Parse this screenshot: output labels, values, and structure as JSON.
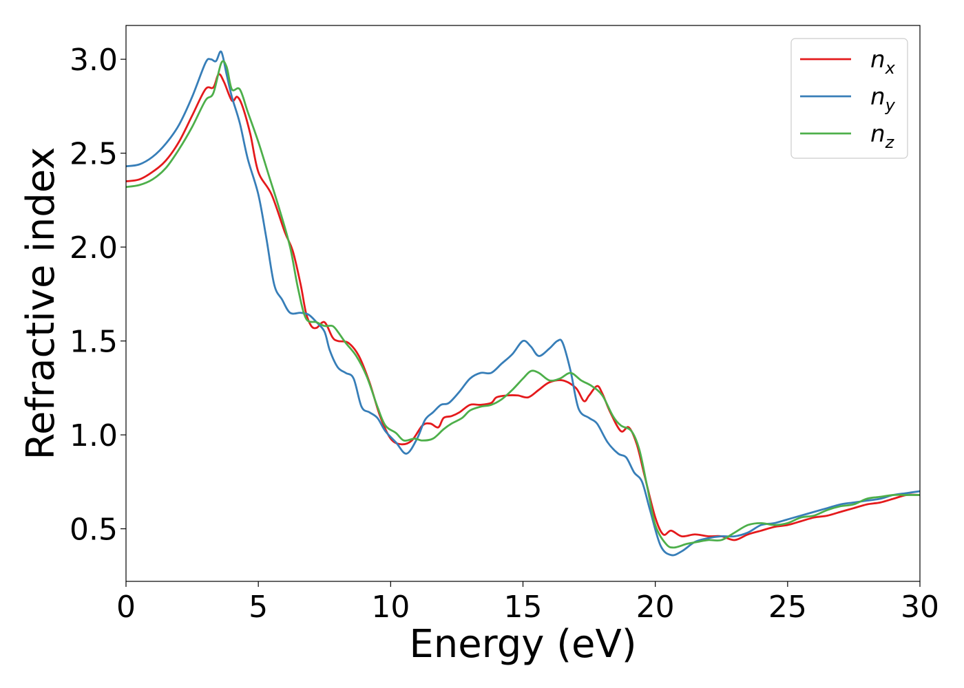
{
  "chart_data": {
    "type": "line",
    "title": "",
    "xlabel": "Energy (eV)",
    "ylabel": "Refractive index",
    "xlim": [
      0,
      30
    ],
    "ylim": [
      0.22,
      3.18
    ],
    "xticks": [
      0,
      5,
      10,
      15,
      20,
      25,
      30
    ],
    "xtick_labels": [
      "0",
      "5",
      "10",
      "15",
      "20",
      "25",
      "30"
    ],
    "yticks": [
      0.5,
      1.0,
      1.5,
      2.0,
      2.5,
      3.0
    ],
    "ytick_labels": [
      "0.5",
      "1.0",
      "1.5",
      "2.0",
      "2.5",
      "3.0"
    ],
    "grid": false,
    "legend_position": "top-right",
    "series": [
      {
        "name": "n_x",
        "label_base": "n",
        "label_sub": "x",
        "color": "#e41a1c",
        "points": [
          [
            0,
            2.35
          ],
          [
            0.5,
            2.36
          ],
          [
            1,
            2.4
          ],
          [
            1.5,
            2.46
          ],
          [
            2,
            2.56
          ],
          [
            2.5,
            2.7
          ],
          [
            3,
            2.84
          ],
          [
            3.3,
            2.85
          ],
          [
            3.5,
            2.92
          ],
          [
            3.7,
            2.88
          ],
          [
            4,
            2.78
          ],
          [
            4.2,
            2.8
          ],
          [
            4.4,
            2.75
          ],
          [
            4.7,
            2.6
          ],
          [
            5,
            2.4
          ],
          [
            5.5,
            2.28
          ],
          [
            6,
            2.08
          ],
          [
            6.3,
            1.98
          ],
          [
            6.6,
            1.8
          ],
          [
            6.8,
            1.65
          ],
          [
            7,
            1.58
          ],
          [
            7.2,
            1.57
          ],
          [
            7.5,
            1.6
          ],
          [
            7.8,
            1.52
          ],
          [
            8,
            1.5
          ],
          [
            8.4,
            1.49
          ],
          [
            8.8,
            1.42
          ],
          [
            9.2,
            1.28
          ],
          [
            9.6,
            1.1
          ],
          [
            10,
            0.98
          ],
          [
            10.4,
            0.95
          ],
          [
            10.8,
            0.97
          ],
          [
            11.2,
            1.05
          ],
          [
            11.5,
            1.06
          ],
          [
            11.8,
            1.04
          ],
          [
            12,
            1.09
          ],
          [
            12.3,
            1.1
          ],
          [
            12.6,
            1.12
          ],
          [
            13,
            1.16
          ],
          [
            13.4,
            1.16
          ],
          [
            13.8,
            1.17
          ],
          [
            14,
            1.2
          ],
          [
            14.4,
            1.21
          ],
          [
            14.8,
            1.21
          ],
          [
            15.2,
            1.2
          ],
          [
            15.6,
            1.24
          ],
          [
            16,
            1.28
          ],
          [
            16.5,
            1.29
          ],
          [
            17,
            1.25
          ],
          [
            17.3,
            1.18
          ],
          [
            17.5,
            1.21
          ],
          [
            17.8,
            1.26
          ],
          [
            18,
            1.22
          ],
          [
            18.3,
            1.12
          ],
          [
            18.7,
            1.02
          ],
          [
            19,
            1.04
          ],
          [
            19.3,
            0.95
          ],
          [
            19.6,
            0.78
          ],
          [
            20,
            0.56
          ],
          [
            20.3,
            0.47
          ],
          [
            20.6,
            0.49
          ],
          [
            21,
            0.46
          ],
          [
            21.5,
            0.47
          ],
          [
            22,
            0.46
          ],
          [
            22.5,
            0.46
          ],
          [
            23,
            0.44
          ],
          [
            23.5,
            0.47
          ],
          [
            24,
            0.49
          ],
          [
            24.5,
            0.51
          ],
          [
            25,
            0.52
          ],
          [
            25.5,
            0.54
          ],
          [
            26,
            0.56
          ],
          [
            26.5,
            0.57
          ],
          [
            27,
            0.59
          ],
          [
            27.5,
            0.61
          ],
          [
            28,
            0.63
          ],
          [
            28.5,
            0.64
          ],
          [
            29,
            0.66
          ],
          [
            29.5,
            0.68
          ],
          [
            30,
            0.68
          ]
        ]
      },
      {
        "name": "n_y",
        "label_base": "n",
        "label_sub": "y",
        "color": "#377eb8",
        "points": [
          [
            0,
            2.43
          ],
          [
            0.5,
            2.44
          ],
          [
            1,
            2.48
          ],
          [
            1.5,
            2.55
          ],
          [
            2,
            2.65
          ],
          [
            2.5,
            2.8
          ],
          [
            3,
            2.98
          ],
          [
            3.2,
            3.0
          ],
          [
            3.4,
            2.99
          ],
          [
            3.6,
            3.04
          ],
          [
            3.8,
            2.92
          ],
          [
            4,
            2.8
          ],
          [
            4.3,
            2.66
          ],
          [
            4.6,
            2.47
          ],
          [
            5,
            2.28
          ],
          [
            5.3,
            2.05
          ],
          [
            5.6,
            1.8
          ],
          [
            5.9,
            1.72
          ],
          [
            6.2,
            1.65
          ],
          [
            6.6,
            1.65
          ],
          [
            6.9,
            1.64
          ],
          [
            7.2,
            1.6
          ],
          [
            7.5,
            1.55
          ],
          [
            7.7,
            1.45
          ],
          [
            8,
            1.36
          ],
          [
            8.3,
            1.33
          ],
          [
            8.6,
            1.3
          ],
          [
            8.9,
            1.15
          ],
          [
            9.2,
            1.12
          ],
          [
            9.5,
            1.09
          ],
          [
            9.8,
            1.02
          ],
          [
            10.2,
            0.96
          ],
          [
            10.6,
            0.9
          ],
          [
            11,
            0.98
          ],
          [
            11.3,
            1.08
          ],
          [
            11.6,
            1.12
          ],
          [
            11.9,
            1.16
          ],
          [
            12.2,
            1.17
          ],
          [
            12.6,
            1.23
          ],
          [
            13,
            1.3
          ],
          [
            13.4,
            1.33
          ],
          [
            13.8,
            1.33
          ],
          [
            14.2,
            1.38
          ],
          [
            14.6,
            1.43
          ],
          [
            15,
            1.5
          ],
          [
            15.3,
            1.47
          ],
          [
            15.6,
            1.42
          ],
          [
            16,
            1.46
          ],
          [
            16.3,
            1.5
          ],
          [
            16.5,
            1.49
          ],
          [
            16.8,
            1.34
          ],
          [
            17.1,
            1.14
          ],
          [
            17.5,
            1.09
          ],
          [
            17.8,
            1.06
          ],
          [
            18.2,
            0.96
          ],
          [
            18.6,
            0.9
          ],
          [
            18.9,
            0.88
          ],
          [
            19.2,
            0.8
          ],
          [
            19.5,
            0.75
          ],
          [
            19.8,
            0.6
          ],
          [
            20.2,
            0.41
          ],
          [
            20.6,
            0.36
          ],
          [
            21,
            0.38
          ],
          [
            21.5,
            0.43
          ],
          [
            22,
            0.45
          ],
          [
            22.5,
            0.46
          ],
          [
            23,
            0.46
          ],
          [
            23.5,
            0.48
          ],
          [
            24,
            0.52
          ],
          [
            24.5,
            0.53
          ],
          [
            25,
            0.55
          ],
          [
            25.5,
            0.57
          ],
          [
            26,
            0.59
          ],
          [
            26.5,
            0.61
          ],
          [
            27,
            0.63
          ],
          [
            27.5,
            0.64
          ],
          [
            28,
            0.65
          ],
          [
            28.5,
            0.66
          ],
          [
            29,
            0.68
          ],
          [
            29.5,
            0.69
          ],
          [
            30,
            0.7
          ]
        ]
      },
      {
        "name": "n_z",
        "label_base": "n",
        "label_sub": "z",
        "color": "#4daf4a",
        "points": [
          [
            0,
            2.32
          ],
          [
            0.5,
            2.33
          ],
          [
            1,
            2.36
          ],
          [
            1.5,
            2.42
          ],
          [
            2,
            2.52
          ],
          [
            2.5,
            2.64
          ],
          [
            3,
            2.78
          ],
          [
            3.3,
            2.82
          ],
          [
            3.6,
            2.98
          ],
          [
            3.8,
            2.96
          ],
          [
            4,
            2.84
          ],
          [
            4.3,
            2.84
          ],
          [
            4.6,
            2.72
          ],
          [
            5,
            2.56
          ],
          [
            5.4,
            2.38
          ],
          [
            5.8,
            2.2
          ],
          [
            6.2,
            2.0
          ],
          [
            6.5,
            1.78
          ],
          [
            6.8,
            1.62
          ],
          [
            7.2,
            1.6
          ],
          [
            7.5,
            1.58
          ],
          [
            7.8,
            1.58
          ],
          [
            8,
            1.55
          ],
          [
            8.3,
            1.49
          ],
          [
            8.7,
            1.42
          ],
          [
            9.1,
            1.31
          ],
          [
            9.5,
            1.15
          ],
          [
            9.8,
            1.05
          ],
          [
            10.2,
            1.01
          ],
          [
            10.5,
            0.97
          ],
          [
            10.9,
            0.98
          ],
          [
            11.2,
            0.97
          ],
          [
            11.6,
            0.98
          ],
          [
            12,
            1.03
          ],
          [
            12.3,
            1.06
          ],
          [
            12.7,
            1.09
          ],
          [
            13,
            1.13
          ],
          [
            13.4,
            1.15
          ],
          [
            13.8,
            1.16
          ],
          [
            14.2,
            1.19
          ],
          [
            14.6,
            1.24
          ],
          [
            15,
            1.3
          ],
          [
            15.3,
            1.34
          ],
          [
            15.6,
            1.33
          ],
          [
            16,
            1.29
          ],
          [
            16.4,
            1.3
          ],
          [
            16.8,
            1.33
          ],
          [
            17.2,
            1.29
          ],
          [
            17.6,
            1.26
          ],
          [
            18,
            1.21
          ],
          [
            18.4,
            1.1
          ],
          [
            18.7,
            1.05
          ],
          [
            19.1,
            1.02
          ],
          [
            19.4,
            0.92
          ],
          [
            19.7,
            0.72
          ],
          [
            20,
            0.52
          ],
          [
            20.4,
            0.42
          ],
          [
            20.7,
            0.4
          ],
          [
            21.2,
            0.42
          ],
          [
            21.6,
            0.43
          ],
          [
            22,
            0.44
          ],
          [
            22.5,
            0.44
          ],
          [
            23,
            0.48
          ],
          [
            23.5,
            0.52
          ],
          [
            24,
            0.53
          ],
          [
            24.5,
            0.52
          ],
          [
            25,
            0.53
          ],
          [
            25.5,
            0.56
          ],
          [
            26,
            0.57
          ],
          [
            26.5,
            0.6
          ],
          [
            27,
            0.62
          ],
          [
            27.5,
            0.63
          ],
          [
            28,
            0.66
          ],
          [
            28.5,
            0.67
          ],
          [
            29,
            0.68
          ],
          [
            29.5,
            0.68
          ],
          [
            30,
            0.68
          ]
        ]
      }
    ]
  }
}
